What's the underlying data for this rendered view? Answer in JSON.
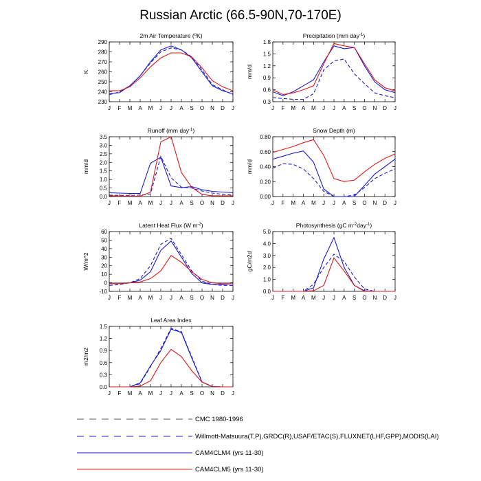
{
  "title": "Russian Arctic (66.5-90N,70-170E)",
  "months": [
    "J",
    "F",
    "M",
    "A",
    "M",
    "J",
    "J",
    "A",
    "S",
    "O",
    "N",
    "D",
    "J"
  ],
  "colors": {
    "obs": "#1a1ad0",
    "clm4": "#1a1ad0",
    "clm5": "#e01818"
  },
  "chart_data": [
    {
      "type": "line",
      "id": "temp",
      "title_parts": [
        "2m Air Temperature (",
        "o",
        "K)"
      ],
      "ylabel": "K",
      "ylim": [
        230,
        290
      ],
      "yticks": [
        230,
        240,
        250,
        260,
        270,
        280,
        290
      ],
      "ytick_labels": [
        "230",
        "240",
        "250",
        "260",
        "270",
        "280",
        "290"
      ],
      "series": [
        {
          "name": "CMC 1980-1996",
          "dash": true,
          "values": null
        },
        {
          "name": "obs",
          "dash": true,
          "values": [
            237,
            240,
            246,
            256,
            269,
            280,
            284,
            282,
            275,
            262,
            247,
            242,
            237
          ]
        },
        {
          "name": "CAM4CLM4",
          "dash": false,
          "values": [
            238,
            239,
            246,
            256,
            270,
            282,
            286,
            282,
            274,
            260,
            246,
            241,
            238
          ]
        },
        {
          "name": "CAM4CLM5",
          "dash": false,
          "values": [
            241,
            241,
            245,
            254,
            265,
            274,
            279,
            279,
            275,
            264,
            251,
            245,
            241
          ]
        }
      ]
    },
    {
      "type": "line",
      "id": "precip",
      "title_parts": [
        "Precipitation (mm day",
        "-1",
        ")"
      ],
      "ylabel": "mm/d",
      "ylim": [
        0.3,
        1.8
      ],
      "yticks": [
        0.3,
        0.6,
        0.9,
        1.2,
        1.5,
        1.8
      ],
      "ytick_labels": [
        "0.3",
        "0.6",
        "0.9",
        "1.2",
        "1.5",
        "1.8"
      ],
      "series": [
        {
          "name": "obs",
          "dash": true,
          "values": [
            0.4,
            0.38,
            0.36,
            0.36,
            0.5,
            1.1,
            1.32,
            1.37,
            1.0,
            0.75,
            0.52,
            0.45,
            0.4
          ]
        },
        {
          "name": "CAM4CLM4",
          "dash": false,
          "values": [
            0.55,
            0.45,
            0.55,
            0.7,
            0.85,
            1.3,
            1.7,
            1.63,
            1.66,
            1.2,
            0.8,
            0.6,
            0.53
          ]
        },
        {
          "name": "CAM4CLM5",
          "dash": false,
          "values": [
            0.6,
            0.48,
            0.52,
            0.6,
            0.7,
            1.25,
            1.76,
            1.7,
            1.66,
            1.25,
            0.85,
            0.65,
            0.57
          ]
        }
      ]
    },
    {
      "type": "line",
      "id": "runoff",
      "title_parts": [
        "Runoff (mm day",
        "-1",
        ")"
      ],
      "ylabel": "mm/d",
      "ylim": [
        0.0,
        3.5
      ],
      "yticks": [
        0,
        0.5,
        1.0,
        1.5,
        2.0,
        2.5,
        3.0,
        3.5
      ],
      "ytick_labels": [
        "0.0",
        "0.5",
        "1.0",
        "1.5",
        "2.0",
        "2.5",
        "3.0",
        "3.5"
      ],
      "series": [
        {
          "name": "obs",
          "dash": true,
          "values": [
            0.08,
            0.07,
            0.07,
            0.08,
            0.15,
            2.35,
            1.1,
            0.55,
            0.5,
            0.32,
            0.2,
            0.13,
            0.08
          ]
        },
        {
          "name": "CAM4CLM4",
          "dash": false,
          "values": [
            0.22,
            0.2,
            0.18,
            0.18,
            1.95,
            2.3,
            0.62,
            0.52,
            0.58,
            0.4,
            0.3,
            0.26,
            0.22
          ]
        },
        {
          "name": "CAM4CLM5",
          "dash": false,
          "values": [
            0.05,
            0.03,
            0.02,
            0.02,
            0.25,
            3.2,
            3.5,
            1.4,
            0.55,
            0.12,
            0.05,
            0.04,
            0.05
          ]
        }
      ]
    },
    {
      "type": "line",
      "id": "snow",
      "title_parts": [
        "Snow Depth (m)"
      ],
      "ylabel": "mm/d",
      "ylim": [
        0.0,
        0.8
      ],
      "yticks": [
        0,
        0.2,
        0.4,
        0.6,
        0.8
      ],
      "ytick_labels": [
        "0.00",
        "0.20",
        "0.40",
        "0.60",
        "0.80"
      ],
      "series": [
        {
          "name": "obs",
          "dash": true,
          "values": [
            0.38,
            0.44,
            0.43,
            0.37,
            0.24,
            0.07,
            0.0,
            0.0,
            0.02,
            0.12,
            0.24,
            0.31,
            0.37
          ]
        },
        {
          "name": "CAM4CLM4",
          "dash": false,
          "values": [
            0.5,
            0.54,
            0.58,
            0.61,
            0.46,
            0.1,
            0.0,
            0.0,
            0.0,
            0.15,
            0.3,
            0.4,
            0.5
          ]
        },
        {
          "name": "CAM4CLM5",
          "dash": false,
          "values": [
            0.59,
            0.63,
            0.67,
            0.72,
            0.76,
            0.55,
            0.24,
            0.2,
            0.22,
            0.33,
            0.43,
            0.51,
            0.57
          ]
        }
      ]
    },
    {
      "type": "line",
      "id": "lhf",
      "title_parts": [
        "Latent Heat Flux (W m",
        "-2",
        ")"
      ],
      "ylabel": "W/m^2",
      "ylim": [
        -10,
        60
      ],
      "yticks": [
        -10,
        0,
        10,
        20,
        30,
        40,
        50,
        60
      ],
      "ytick_labels": [
        "-10",
        "0",
        "10",
        "20",
        "30",
        "40",
        "50",
        "60"
      ],
      "series": [
        {
          "name": "obs",
          "dash": true,
          "values": [
            -3,
            -2,
            0,
            5,
            20,
            45,
            52,
            33,
            14,
            2,
            -2,
            -3,
            -3
          ]
        },
        {
          "name": "CAM4CLM4",
          "dash": false,
          "values": [
            -1,
            -1,
            0,
            3,
            13,
            38,
            49,
            30,
            11,
            0,
            -2,
            -2,
            -1
          ]
        },
        {
          "name": "CAM4CLM5",
          "dash": false,
          "values": [
            -1,
            -1,
            0,
            1,
            5,
            14,
            32,
            24,
            13,
            4,
            0,
            -1,
            -1
          ]
        }
      ]
    },
    {
      "type": "line",
      "id": "photo",
      "title_parts": [
        "Photosynthesis (gC m",
        "-2",
        "day",
        "-1",
        ")"
      ],
      "ylabel": "gC/m2d",
      "ylim": [
        0.0,
        5.0
      ],
      "yticks": [
        0,
        1,
        2,
        3,
        4,
        5
      ],
      "ytick_labels": [
        "0.0",
        "1.0",
        "2.0",
        "3.0",
        "4.0",
        "5.0"
      ],
      "series": [
        {
          "name": "obs",
          "dash": true,
          "values": [
            0,
            0,
            0,
            0,
            0.6,
            2.0,
            3.1,
            2.5,
            1.2,
            0.2,
            0,
            0,
            0
          ]
        },
        {
          "name": "CAM4CLM4",
          "dash": false,
          "values": [
            0,
            0,
            0,
            0,
            0.3,
            2.7,
            4.5,
            2.0,
            0.5,
            0.05,
            0,
            0,
            0
          ]
        },
        {
          "name": "CAM4CLM5",
          "dash": false,
          "values": [
            0,
            0,
            0,
            0,
            0.05,
            0.5,
            2.8,
            1.7,
            0.5,
            0,
            0,
            0,
            0
          ]
        }
      ]
    },
    {
      "type": "line",
      "id": "lai",
      "title_parts": [
        "Leaf Area Index"
      ],
      "ylabel": "m2/m2",
      "ylim": [
        0.0,
        1.5
      ],
      "yticks": [
        0,
        0.3,
        0.6,
        0.9,
        1.2,
        1.5
      ],
      "ytick_labels": [
        "0.0",
        "0.3",
        "0.6",
        "0.9",
        "1.2",
        "1.5"
      ],
      "series": [
        {
          "name": "obs",
          "dash": true,
          "values": [
            0,
            0,
            0,
            0.08,
            0.5,
            0.95,
            1.45,
            1.37,
            0.75,
            0.12,
            0,
            0,
            0
          ]
        },
        {
          "name": "CAM4CLM4",
          "dash": false,
          "values": [
            0,
            0,
            0,
            0.1,
            0.52,
            0.9,
            1.43,
            1.35,
            0.72,
            0.12,
            0.01,
            0,
            0
          ]
        },
        {
          "name": "CAM4CLM5",
          "dash": false,
          "values": [
            0,
            0,
            0,
            0.02,
            0.15,
            0.6,
            0.93,
            0.75,
            0.4,
            0.12,
            0.01,
            0,
            0
          ]
        }
      ]
    }
  ],
  "legend": [
    {
      "label": "CMC 1980-1996",
      "style": "dash"
    },
    {
      "label": "Willmott-Matsuura(T,P),GRDC(R),USAF/ETAC(S),FLUXNET(LHF,GPP),MODIS(LAI)",
      "style": "dash"
    },
    {
      "label": "CAM4CLM4 (yrs 11-30)",
      "style": "solid-blue"
    },
    {
      "label": "CAM4CLM5 (yrs 11-30)",
      "style": "solid-red"
    }
  ]
}
